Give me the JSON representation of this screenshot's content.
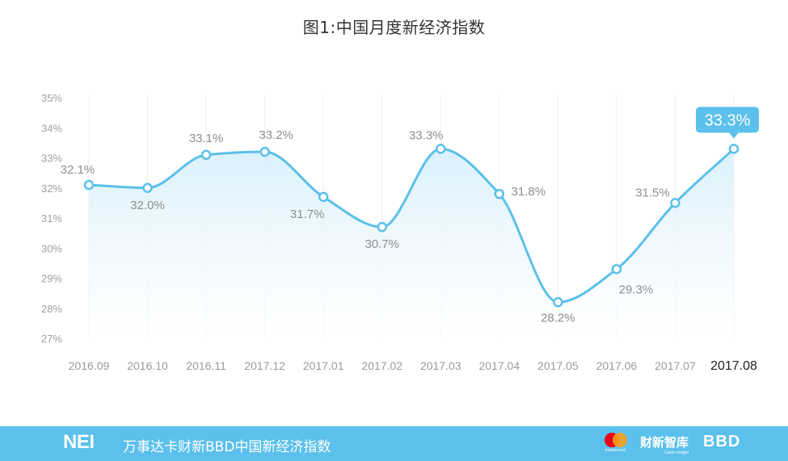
{
  "title": "图1:中国月度新经济指数",
  "chart_data": {
    "type": "line",
    "title": "图1:中国月度新经济指数",
    "xlabel": "",
    "ylabel": "",
    "categories": [
      "2016.09",
      "2016.10",
      "2016.11",
      "2017.12",
      "2017.01",
      "2017.02",
      "2017.03",
      "2017.04",
      "2017.05",
      "2017.06",
      "2017.07",
      "2017.08"
    ],
    "values": [
      32.1,
      32.0,
      33.1,
      33.2,
      31.7,
      30.7,
      33.3,
      31.8,
      28.2,
      29.3,
      31.5,
      33.3
    ],
    "labels": [
      "32.1%",
      "32.0%",
      "33.1%",
      "33.2%",
      "31.7%",
      "30.7%",
      "33.3%",
      "31.8%",
      "28.2%",
      "29.3%",
      "31.5%",
      "33.3%"
    ],
    "yticks": [
      "27%",
      "28%",
      "29%",
      "30%",
      "31%",
      "32%",
      "33%",
      "34%",
      "35%"
    ],
    "ylim": [
      27,
      35
    ],
    "grid": "vertical",
    "legend": "none",
    "highlight_label": "33.3%",
    "line_color": "#5bc0eb",
    "fill_color": "#e6f5fc"
  },
  "footer": {
    "brand": "NEI",
    "text": "万事达卡财新BBD中国新经济指数",
    "logo_mastercard_caption": "mastercard",
    "logo_caixin": "财新智库",
    "logo_caixin_sub": "Caixin Insight",
    "logo_bbd": "BBD",
    "background": "#5bc0eb"
  }
}
